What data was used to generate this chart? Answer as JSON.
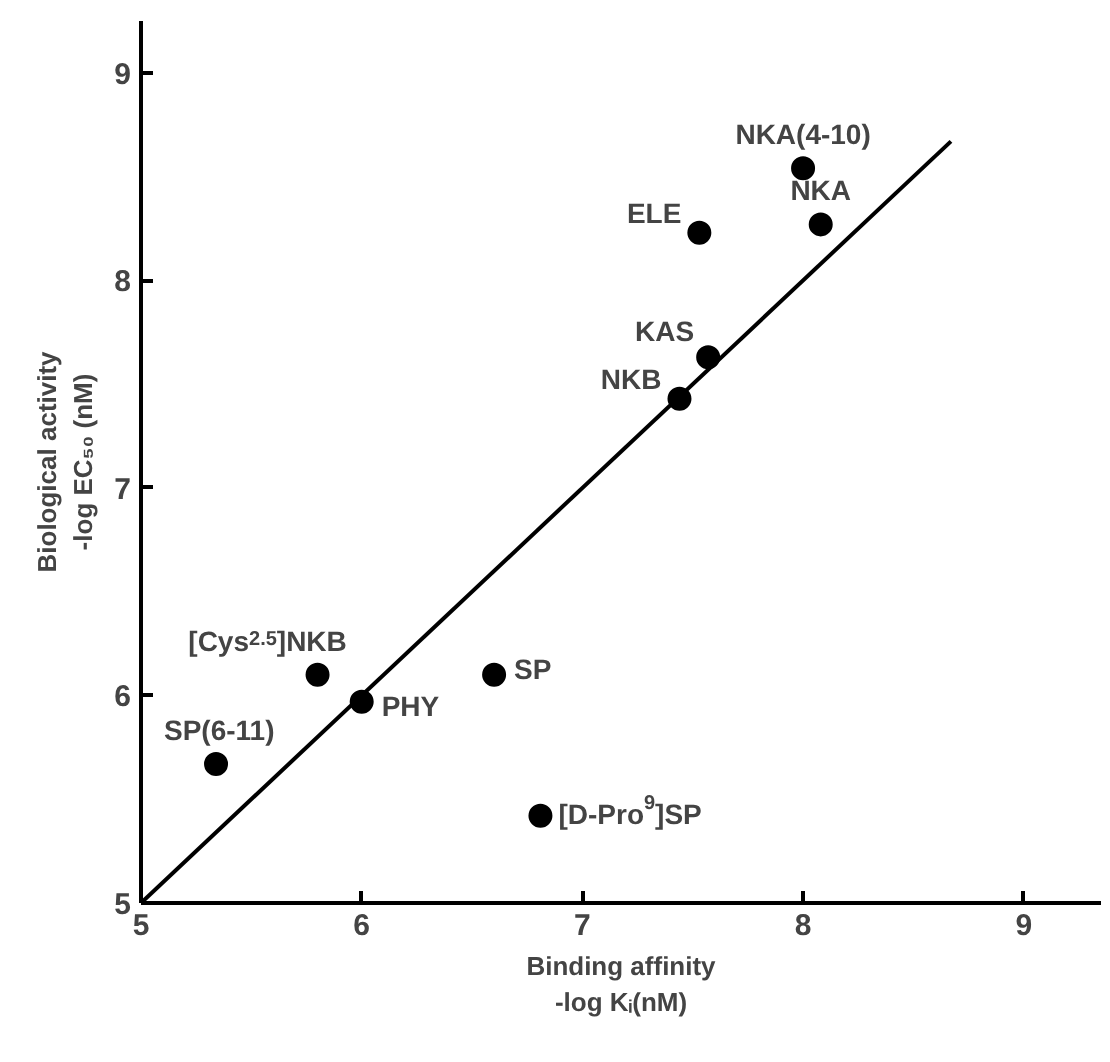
{
  "chart_data": {
    "type": "scatter",
    "xlabel": "Binding affinity\n-log Kᵢ(nM)",
    "ylabel": "Biological activity\n-log EC₅₀ (nM)",
    "xlim": [
      5,
      9.35
    ],
    "ylim": [
      5,
      9.25
    ],
    "xticks": [
      5,
      6,
      7,
      8,
      9
    ],
    "yticks": [
      5,
      6,
      7,
      8,
      9
    ],
    "grid": false,
    "series": [
      {
        "marker": "circle",
        "color": "#000000",
        "x": [
          8.0,
          8.08,
          7.53,
          7.57,
          7.44,
          5.8,
          6.0,
          6.6,
          5.34,
          6.81
        ],
        "values": [
          8.54,
          8.27,
          8.23,
          7.63,
          7.43,
          6.1,
          5.97,
          6.1,
          5.67,
          5.42
        ]
      },
      {
        "type": "line",
        "color": "#000000",
        "line_style": "solid",
        "x": [
          5,
          8.67
        ],
        "values": [
          5,
          8.67
        ]
      }
    ],
    "annotations": [
      {
        "text": "NKA(4-10)",
        "x": 8.0,
        "y": 8.54
      },
      {
        "text": "NKA",
        "x": 8.08,
        "y": 8.27
      },
      {
        "text": "ELE",
        "x": 7.53,
        "y": 8.23
      },
      {
        "text": "KAS",
        "x": 7.57,
        "y": 7.63
      },
      {
        "text": "NKB",
        "x": 7.44,
        "y": 7.43
      },
      {
        "text": "[Cys$^{2.5}$]NKB",
        "x": 5.8,
        "y": 6.1
      },
      {
        "text": "PHY",
        "x": 6.0,
        "y": 5.97
      },
      {
        "text": "SP",
        "x": 6.6,
        "y": 6.1
      },
      {
        "text": "SP(6-11)",
        "x": 5.34,
        "y": 5.67
      },
      {
        "text": "[D-Pro$^{9}$]SP",
        "x": 6.81,
        "y": 5.42
      }
    ]
  }
}
